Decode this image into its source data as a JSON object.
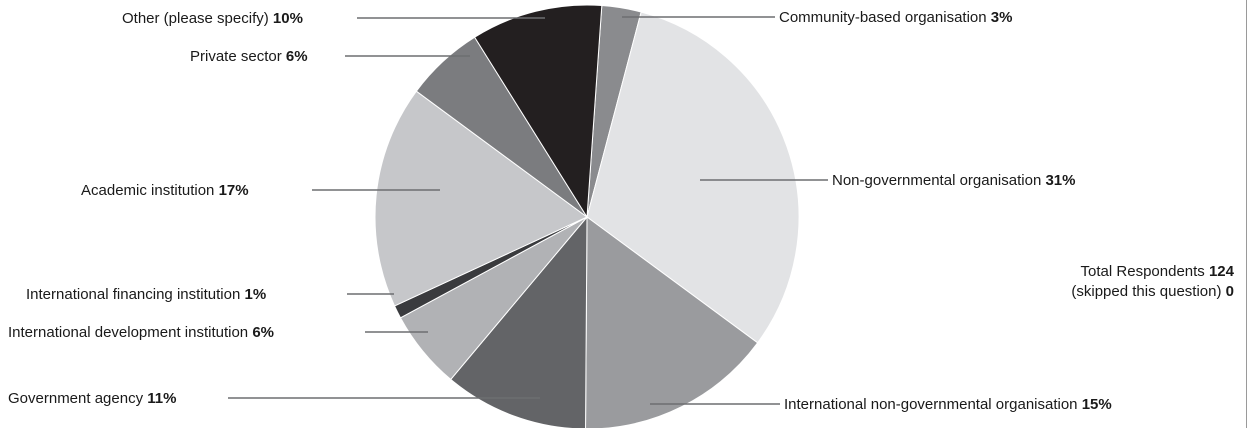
{
  "chart_data": {
    "type": "pie",
    "title": "",
    "slices": [
      {
        "label": "Community-based organisation",
        "value": 3,
        "value_label": "3%",
        "color": "#8a8b8e"
      },
      {
        "label": "Non-governmental organisation",
        "value": 31,
        "value_label": "31%",
        "color": "#e2e3e5"
      },
      {
        "label": "International non-governmental organisation",
        "value": 15,
        "value_label": "15%",
        "color": "#9a9b9e"
      },
      {
        "label": "Government agency",
        "value": 11,
        "value_label": "11%",
        "color": "#636467"
      },
      {
        "label": "International development institution",
        "value": 6,
        "value_label": "6%",
        "color": "#b1b2b5"
      },
      {
        "label": "International financing institution",
        "value": 1,
        "value_label": "1%",
        "color": "#3a3b3e"
      },
      {
        "label": "Academic institution",
        "value": 17,
        "value_label": "17%",
        "color": "#c6c7ca"
      },
      {
        "label": "Private sector",
        "value": 6,
        "value_label": "6%",
        "color": "#7b7c7f"
      },
      {
        "label": "Other (please specify)",
        "value": 10,
        "value_label": "10%",
        "color": "#231f20"
      }
    ]
  },
  "totals": {
    "respondents_label": "Total Respondents",
    "respondents_value": "124",
    "skipped_label": "(skipped this question)",
    "skipped_value": "0"
  }
}
